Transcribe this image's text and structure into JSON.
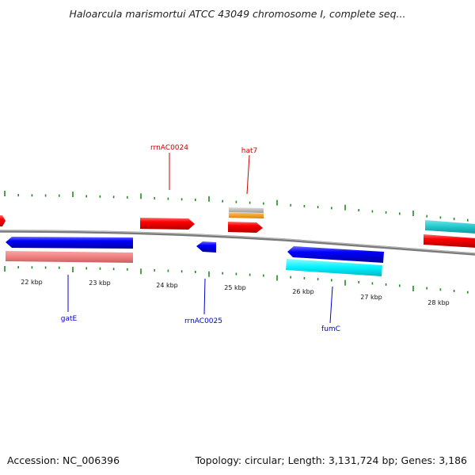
{
  "title": "Haloarcula marismortui ATCC 43049 chromosome I, complete seq...",
  "footer": {
    "accession": "Accession: NC_006396",
    "summary": "Topology: circular; Length: 3,131,724 bp; Genes: 3,186"
  },
  "ruler": {
    "labels": [
      "22 kbp",
      "23 kbp",
      "24 kbp",
      "25 kbp",
      "26 kbp",
      "27 kbp",
      "28 kbp"
    ]
  },
  "genes": {
    "forward": [
      {
        "label": "rrnAC0024",
        "color": "#cc0000"
      },
      {
        "label": "hat7",
        "color": "#cc0000"
      }
    ],
    "reverse": [
      {
        "label": "gatE",
        "color": "#0000cc"
      },
      {
        "label": "rrnAC0025",
        "color": "#0000cc"
      },
      {
        "label": "fumC",
        "color": "#0000cc"
      }
    ]
  },
  "colors": {
    "forward_gene": "#ff0000",
    "reverse_gene": "#0000ff",
    "rRNA_like": "#f08080",
    "cyan_gene": "#00e5f0",
    "teal_gene": "#20c8cc",
    "orange_gene": "#ff9900",
    "grey_gene": "#bbbbbb",
    "backbone": "#808080",
    "tick": "#228b22"
  }
}
